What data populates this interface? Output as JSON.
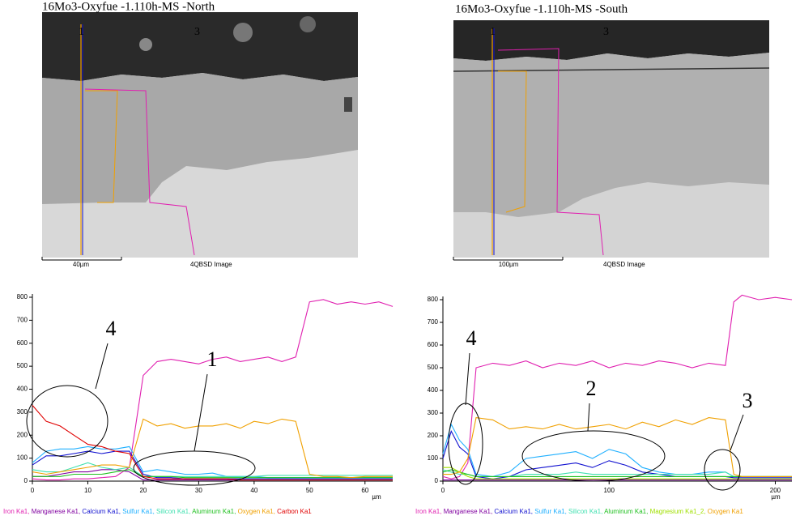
{
  "figure_panels": [
    {
      "title": "16Mo3-Oxyfue -1.110h-MS  -North",
      "scale_label": "40µm",
      "detector_label": "4QBSD Image",
      "markers": [
        "1",
        "3"
      ]
    },
    {
      "title": "16Mo3-Oxyfue -1.110h-MS  -South",
      "scale_label": "100µm",
      "detector_label": "4QBSD Image",
      "markers": [
        "1",
        "3"
      ]
    }
  ],
  "chart_data": [
    {
      "type": "line",
      "x_label": "µm",
      "legend_separator": ", ",
      "x": [
        0,
        2.5,
        5,
        7.5,
        10,
        12.5,
        15,
        17.5,
        20,
        22.5,
        25,
        27.5,
        30,
        32.5,
        35,
        37.5,
        40,
        42.5,
        45,
        47.5,
        50,
        52.5,
        55,
        57.5,
        60,
        62.5,
        65
      ],
      "xlim": [
        0,
        65
      ],
      "xticks": [
        0,
        10,
        20,
        30,
        40,
        50,
        60
      ],
      "ylim": [
        0,
        800
      ],
      "yticks": [
        0,
        100,
        200,
        300,
        400,
        500,
        600,
        700,
        800
      ],
      "series": [
        {
          "name": "Iron Ka1",
          "color": "#e020b0",
          "values": [
            10,
            5,
            5,
            10,
            10,
            15,
            20,
            60,
            460,
            520,
            530,
            520,
            510,
            530,
            540,
            520,
            530,
            540,
            520,
            540,
            780,
            790,
            770,
            780,
            770,
            780,
            760
          ]
        },
        {
          "name": "Manganese Ka1",
          "color": "#8000a0",
          "values": [
            20,
            20,
            30,
            40,
            40,
            50,
            50,
            40,
            5,
            5,
            5,
            5,
            5,
            5,
            5,
            5,
            5,
            5,
            5,
            5,
            5,
            5,
            5,
            5,
            5,
            5,
            5
          ]
        },
        {
          "name": "Calcium Ka1",
          "color": "#1010d0",
          "values": [
            70,
            110,
            110,
            120,
            130,
            120,
            130,
            130,
            30,
            15,
            15,
            10,
            10,
            10,
            10,
            10,
            10,
            10,
            10,
            10,
            10,
            10,
            10,
            10,
            10,
            10,
            10
          ]
        },
        {
          "name": "Sulfur Ka1",
          "color": "#20b0ff",
          "values": [
            80,
            130,
            140,
            140,
            150,
            140,
            140,
            150,
            40,
            50,
            40,
            30,
            30,
            35,
            20,
            20,
            20,
            15,
            15,
            15,
            15,
            15,
            15,
            15,
            15,
            15,
            15
          ]
        },
        {
          "name": "Silicon Ka1",
          "color": "#40e0b0",
          "values": [
            50,
            40,
            40,
            60,
            80,
            60,
            50,
            60,
            20,
            20,
            20,
            20,
            20,
            20,
            20,
            20,
            20,
            25,
            25,
            25,
            25,
            25,
            25,
            25,
            25,
            25,
            25
          ]
        },
        {
          "name": "Aluminum Ka1",
          "color": "#20c020",
          "values": [
            20,
            20,
            20,
            30,
            30,
            30,
            40,
            50,
            20,
            20,
            20,
            15,
            15,
            15,
            15,
            15,
            15,
            15,
            15,
            15,
            15,
            15,
            15,
            15,
            15,
            15,
            15
          ]
        },
        {
          "name": "Oxygen Ka1",
          "color": "#f0a000",
          "values": [
            40,
            30,
            40,
            50,
            60,
            70,
            70,
            60,
            270,
            240,
            250,
            230,
            240,
            240,
            250,
            230,
            260,
            250,
            270,
            260,
            30,
            20,
            20,
            15,
            20,
            20,
            20
          ]
        },
        {
          "name": "Carbon Ka1",
          "color": "#e00000",
          "values": [
            330,
            260,
            240,
            200,
            160,
            150,
            130,
            120,
            20,
            10,
            10,
            10,
            10,
            10,
            10,
            5,
            5,
            5,
            5,
            5,
            5,
            5,
            5,
            5,
            5,
            5,
            5
          ]
        }
      ],
      "annotations": [
        "4",
        "1"
      ]
    },
    {
      "type": "line",
      "x_label": "µm",
      "legend_separator": ", ",
      "x": [
        0,
        5,
        10,
        15,
        20,
        30,
        40,
        50,
        60,
        70,
        80,
        90,
        100,
        110,
        120,
        130,
        140,
        150,
        160,
        170,
        175,
        180,
        190,
        200,
        210
      ],
      "xlim": [
        0,
        210
      ],
      "xticks": [
        0,
        100,
        200
      ],
      "ylim": [
        0,
        800
      ],
      "yticks": [
        0,
        100,
        200,
        300,
        400,
        500,
        600,
        700,
        800
      ],
      "series": [
        {
          "name": "Iron Ka1",
          "color": "#e020b0",
          "values": [
            20,
            10,
            20,
            80,
            500,
            520,
            510,
            530,
            500,
            520,
            510,
            530,
            500,
            520,
            510,
            530,
            520,
            500,
            520,
            510,
            790,
            820,
            800,
            810,
            800
          ]
        },
        {
          "name": "Manganese Ka1",
          "color": "#8000a0",
          "values": [
            5,
            5,
            5,
            5,
            5,
            5,
            5,
            5,
            5,
            5,
            5,
            5,
            5,
            5,
            5,
            5,
            5,
            5,
            5,
            5,
            5,
            5,
            5,
            5,
            5
          ]
        },
        {
          "name": "Calcium Ka1",
          "color": "#1010d0",
          "values": [
            100,
            220,
            150,
            120,
            20,
            10,
            20,
            50,
            60,
            70,
            80,
            60,
            90,
            70,
            40,
            30,
            20,
            20,
            20,
            20,
            15,
            15,
            15,
            15,
            15
          ]
        },
        {
          "name": "Sulfur Ka1",
          "color": "#20b0ff",
          "values": [
            120,
            250,
            180,
            140,
            30,
            20,
            40,
            100,
            110,
            120,
            130,
            100,
            140,
            120,
            60,
            40,
            30,
            30,
            40,
            40,
            20,
            20,
            20,
            20,
            20
          ]
        },
        {
          "name": "Silicon Ka1",
          "color": "#40e0b0",
          "values": [
            50,
            40,
            30,
            30,
            20,
            20,
            20,
            30,
            30,
            30,
            40,
            30,
            30,
            30,
            30,
            30,
            30,
            30,
            30,
            40,
            20,
            20,
            20,
            20,
            20
          ]
        },
        {
          "name": "Aluminum Ka1",
          "color": "#20c020",
          "values": [
            40,
            50,
            40,
            30,
            20,
            20,
            20,
            20,
            20,
            20,
            20,
            20,
            20,
            20,
            20,
            20,
            20,
            20,
            20,
            20,
            20,
            20,
            20,
            20,
            20
          ]
        },
        {
          "name": "Magnesium Ka1_2",
          "color": "#a0e000",
          "values": [
            60,
            60,
            40,
            20,
            10,
            10,
            10,
            10,
            10,
            10,
            10,
            10,
            10,
            10,
            10,
            10,
            10,
            10,
            10,
            10,
            10,
            10,
            10,
            10,
            10
          ]
        },
        {
          "name": "Oxygen Ka1",
          "color": "#f0a000",
          "values": [
            30,
            30,
            40,
            100,
            280,
            270,
            230,
            240,
            230,
            250,
            230,
            240,
            250,
            230,
            260,
            240,
            270,
            250,
            280,
            270,
            30,
            20,
            20,
            20,
            20
          ]
        }
      ],
      "annotations": [
        "4",
        "2",
        "3"
      ]
    }
  ]
}
